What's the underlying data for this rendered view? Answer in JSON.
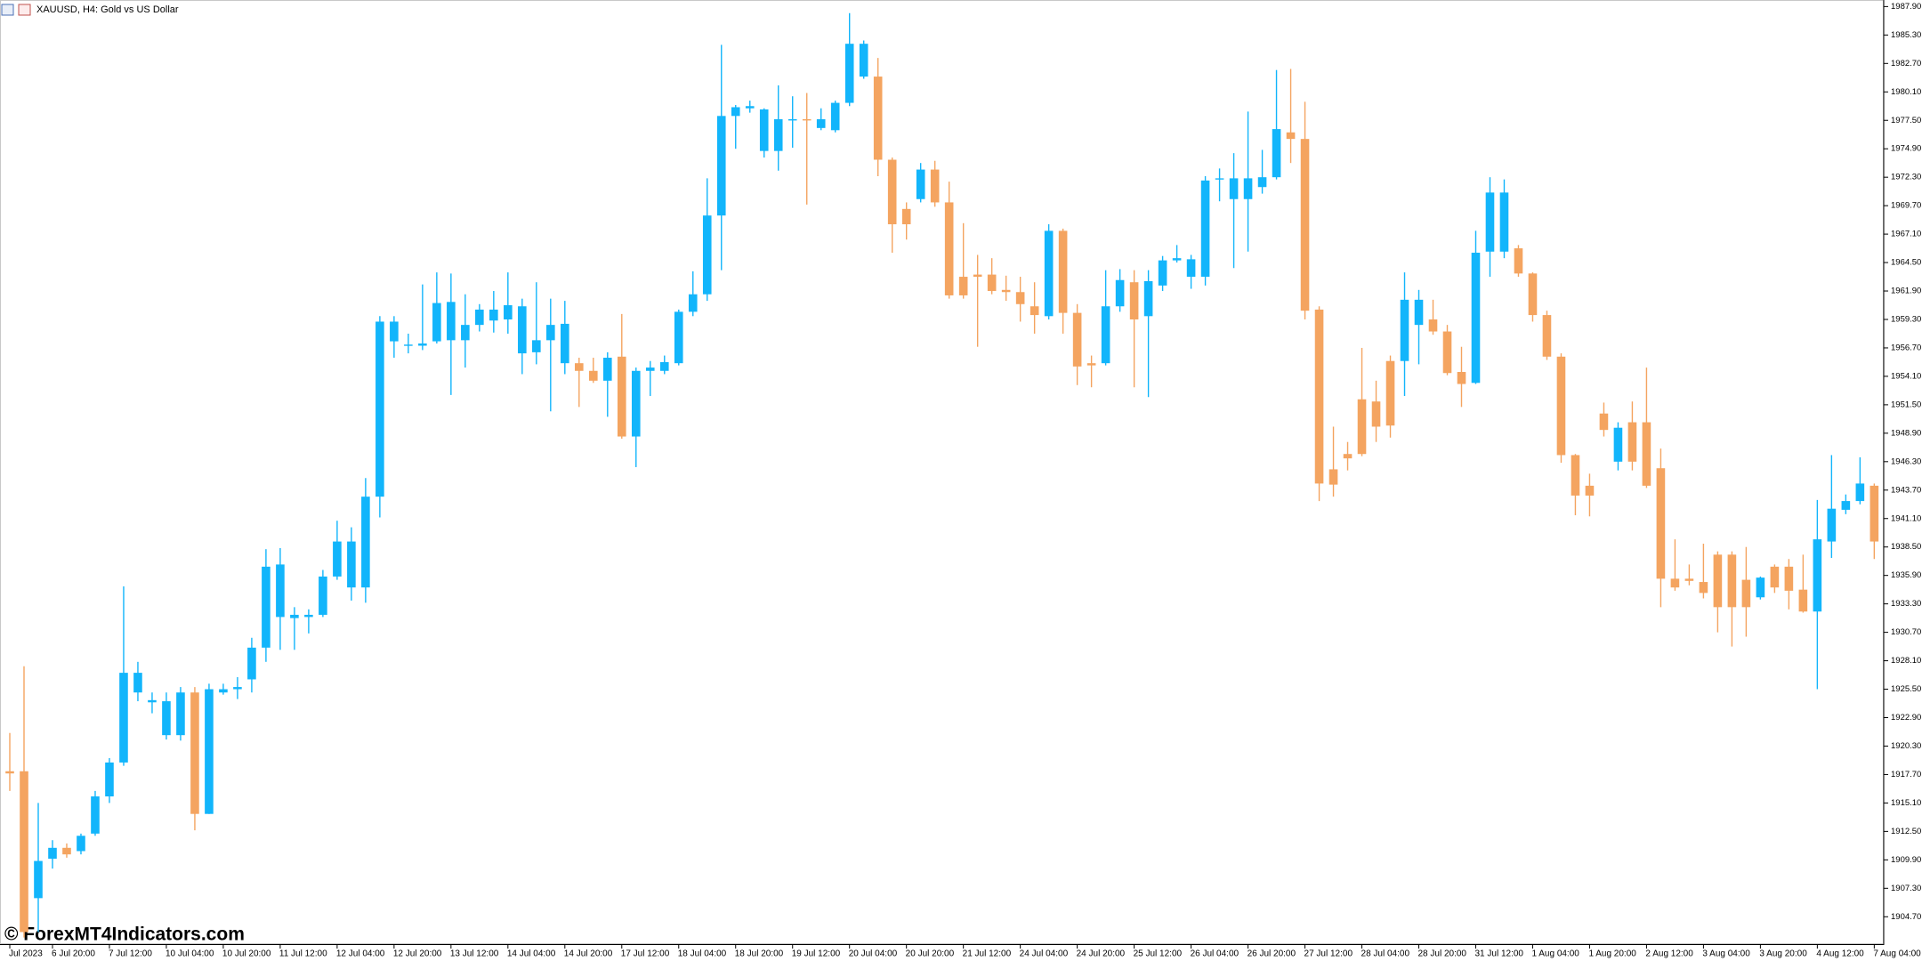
{
  "chart_data": {
    "type": "candlestick",
    "title": "XAUUSD, H4:  Gold vs US Dollar",
    "watermark": "© ForexMT4Indicators.com",
    "up_color": "#12b5fb",
    "down_color": "#f4a460",
    "grid": false,
    "categories": [
      "Jul 2023",
      null,
      null,
      "6 Jul 20:00",
      null,
      null,
      null,
      "7 Jul 12:00",
      null,
      null,
      null,
      "10 Jul 04:00",
      null,
      null,
      null,
      "10 Jul 20:00",
      null,
      null,
      null,
      "11 Jul 12:00",
      null,
      null,
      null,
      "12 Jul 04:00",
      null,
      null,
      null,
      "12 Jul 20:00",
      null,
      null,
      null,
      "13 Jul 12:00",
      null,
      null,
      null,
      "14 Jul 04:00",
      null,
      null,
      null,
      "14 Jul 20:00",
      null,
      null,
      null,
      "17 Jul 12:00",
      null,
      null,
      null,
      "18 Jul 04:00",
      null,
      null,
      null,
      "18 Jul 20:00",
      null,
      null,
      null,
      "19 Jul 12:00",
      null,
      null,
      null,
      "20 Jul 04:00",
      null,
      null,
      null,
      "20 Jul 20:00",
      null,
      null,
      null,
      "21 Jul 12:00",
      null,
      null,
      null,
      "24 Jul 04:00",
      null,
      null,
      null,
      "24 Jul 20:00",
      null,
      null,
      null,
      "25 Jul 12:00",
      null,
      null,
      null,
      "26 Jul 04:00",
      null,
      null,
      null,
      "26 Jul 20:00",
      null,
      null,
      null,
      "27 Jul 12:00",
      null,
      null,
      null,
      "28 Jul 04:00",
      null,
      null,
      null,
      "28 Jul 20:00",
      null,
      null,
      null,
      "31 Jul 12:00",
      null,
      null,
      null,
      "1 Aug 04:00",
      null,
      null,
      null,
      "1 Aug 20:00",
      null,
      null,
      null,
      "2 Aug 12:00",
      null,
      null,
      null,
      "3 Aug 04:00",
      null,
      null,
      null,
      "3 Aug 20:00",
      null,
      null,
      null,
      "4 Aug 12:00",
      null,
      null,
      null,
      "7 Aug 04:00"
    ],
    "open": [
      1918.0,
      1918.0,
      1906.4,
      1910.0,
      1911.0,
      1910.7,
      1912.3,
      1915.7,
      1918.8,
      1925.2,
      1924.3,
      1921.3,
      1921.3,
      1925.2,
      1914.1,
      1925.2,
      1925.5,
      1926.4,
      1929.3,
      1932.1,
      1932.0,
      1932.1,
      1932.3,
      1935.8,
      1934.8,
      1934.8,
      1943.1,
      1957.3,
      1956.9,
      1956.9,
      1957.3,
      1957.4,
      1957.4,
      1958.8,
      1959.2,
      1959.3,
      1956.2,
      1956.3,
      1957.4,
      1955.3,
      1955.3,
      1954.6,
      1953.7,
      1955.9,
      1948.6,
      1954.6,
      1954.6,
      1955.3,
      1960.0,
      1961.6,
      1968.8,
      1977.9,
      1978.6,
      1974.7,
      1974.7,
      1977.5,
      1977.6,
      1976.8,
      1976.6,
      1979.1,
      1981.5,
      1981.5,
      1973.9,
      1969.4,
      1970.3,
      1973.0,
      1970.0,
      1963.2,
      1963.4,
      1963.4,
      1962.0,
      1961.8,
      1960.5,
      1959.6,
      1967.4,
      1959.9,
      1955.3,
      1955.3,
      1960.5,
      1962.7,
      1959.6,
      1962.4,
      1964.7,
      1963.2,
      1963.2,
      1972.1,
      1970.3,
      1970.3,
      1971.4,
      1972.3,
      1976.4,
      1975.8,
      1960.2,
      1945.6,
      1947.0,
      1952.0,
      1951.8,
      1955.5,
      1955.5,
      1958.8,
      1959.3,
      1958.2,
      1954.5,
      1953.5,
      1965.5,
      1965.5,
      1965.8,
      1963.5,
      1959.7,
      1955.9,
      1946.9,
      1944.1,
      1950.7,
      1946.3,
      1949.9,
      1949.9,
      1945.7,
      1935.6,
      1935.6,
      1935.3,
      1937.8,
      1937.8,
      1935.5,
      1933.9,
      1936.7,
      1936.7,
      1934.6,
      1932.6,
      1939.0,
      1941.9,
      1942.7,
      1944.1
    ],
    "high": [
      1921.5,
      1927.6,
      1915.1,
      1911.7,
      1911.4,
      1912.3,
      1916.2,
      1919.2,
      1934.9,
      1928.0,
      1925.2,
      1925.2,
      1925.7,
      1925.7,
      1926.0,
      1926.0,
      1926.6,
      1930.2,
      1938.3,
      1938.4,
      1933.0,
      1932.8,
      1936.4,
      1940.9,
      1940.3,
      1944.8,
      1959.6,
      1959.6,
      1958.0,
      1962.5,
      1963.6,
      1963.5,
      1961.6,
      1960.7,
      1961.9,
      1963.6,
      1961.2,
      1962.7,
      1961.2,
      1961.0,
      1955.8,
      1955.8,
      1956.3,
      1959.8,
      1954.9,
      1955.5,
      1956.0,
      1960.2,
      1963.7,
      1972.2,
      1984.4,
      1978.9,
      1979.3,
      1978.6,
      1980.7,
      1979.7,
      1980.0,
      1978.6,
      1979.3,
      1987.3,
      1984.8,
      1983.2,
      1974.1,
      1970.0,
      1973.6,
      1973.8,
      1971.9,
      1968.1,
      1965.2,
      1964.9,
      1963.3,
      1963.2,
      1962.7,
      1968.0,
      1967.6,
      1960.7,
      1956.0,
      1963.8,
      1963.9,
      1963.8,
      1963.8,
      1965.1,
      1966.1,
      1965.2,
      1972.4,
      1973.1,
      1974.5,
      1978.3,
      1974.8,
      1982.1,
      1982.2,
      1979.2,
      1960.5,
      1949.5,
      1948.1,
      1956.7,
      1953.7,
      1956.0,
      1963.6,
      1962.0,
      1961.1,
      1958.8,
      1956.8,
      1967.4,
      1972.3,
      1972.1,
      1966.1,
      1963.6,
      1960.1,
      1956.2,
      1947.0,
      1945.2,
      1951.7,
      1949.9,
      1951.8,
      1954.9,
      1947.5,
      1939.2,
      1936.9,
      1938.8,
      1938.1,
      1938.1,
      1938.5,
      1935.8,
      1936.9,
      1937.4,
      1937.8,
      1942.8,
      1946.9,
      1943.3,
      1946.7,
      1944.3
    ],
    "low": [
      1916.2,
      1902.8,
      1903.3,
      1909.1,
      1910.1,
      1910.4,
      1912.1,
      1915.1,
      1918.5,
      1924.4,
      1923.3,
      1920.9,
      1920.8,
      1912.6,
      1914.1,
      1925.0,
      1924.6,
      1925.2,
      1928.0,
      1929.1,
      1929.1,
      1930.6,
      1932.1,
      1935.5,
      1933.6,
      1933.4,
      1941.2,
      1955.8,
      1956.2,
      1956.5,
      1957.1,
      1952.4,
      1954.9,
      1958.2,
      1958.1,
      1958.0,
      1954.3,
      1955.2,
      1950.9,
      1954.3,
      1951.3,
      1953.5,
      1950.4,
      1948.4,
      1945.8,
      1952.3,
      1954.3,
      1955.1,
      1959.6,
      1961.0,
      1963.8,
      1974.9,
      1978.2,
      1974.1,
      1972.9,
      1975.0,
      1969.8,
      1976.6,
      1976.4,
      1978.8,
      1981.3,
      1972.4,
      1965.4,
      1966.6,
      1970.0,
      1969.6,
      1961.2,
      1961.2,
      1956.8,
      1961.6,
      1961.0,
      1959.1,
      1958.0,
      1959.3,
      1958.0,
      1953.3,
      1953.1,
      1955.1,
      1960.0,
      1953.1,
      1952.2,
      1961.9,
      1964.5,
      1962.1,
      1962.4,
      1970.1,
      1964.0,
      1965.5,
      1970.8,
      1972.1,
      1973.6,
      1959.3,
      1942.7,
      1943.1,
      1945.5,
      1946.8,
      1948.1,
      1948.5,
      1952.3,
      1955.2,
      1957.9,
      1954.2,
      1951.3,
      1953.4,
      1963.2,
      1964.9,
      1963.2,
      1959.1,
      1955.6,
      1946.2,
      1941.4,
      1941.3,
      1948.6,
      1945.5,
      1945.5,
      1943.9,
      1933.0,
      1934.5,
      1935.0,
      1933.8,
      1930.7,
      1929.4,
      1930.3,
      1933.7,
      1934.3,
      1932.8,
      1932.5,
      1925.5,
      1937.5,
      1941.5,
      1942.4,
      1937.4
    ],
    "close": [
      1917.8,
      1903.3,
      1909.8,
      1911.0,
      1910.4,
      1912.1,
      1915.7,
      1918.8,
      1927.0,
      1927.0,
      1924.5,
      1924.4,
      1925.2,
      1914.1,
      1925.5,
      1925.5,
      1925.7,
      1929.3,
      1936.7,
      1936.9,
      1932.3,
      1932.3,
      1935.8,
      1939.0,
      1939.0,
      1943.1,
      1959.1,
      1959.1,
      1957.0,
      1957.1,
      1960.8,
      1960.9,
      1958.8,
      1960.2,
      1960.2,
      1960.6,
      1960.5,
      1957.4,
      1958.8,
      1958.9,
      1954.6,
      1953.7,
      1955.8,
      1948.6,
      1954.6,
      1954.9,
      1955.4,
      1960.0,
      1961.6,
      1968.8,
      1977.9,
      1978.7,
      1978.8,
      1978.5,
      1977.6,
      1977.6,
      1977.5,
      1977.6,
      1979.1,
      1984.5,
      1984.5,
      1973.9,
      1968.0,
      1968.0,
      1973.0,
      1970.0,
      1961.5,
      1961.5,
      1963.2,
      1961.9,
      1961.8,
      1960.7,
      1959.7,
      1967.4,
      1959.9,
      1955.0,
      1955.1,
      1960.5,
      1962.9,
      1959.3,
      1962.8,
      1964.7,
      1964.9,
      1964.8,
      1972.0,
      1972.2,
      1972.2,
      1972.2,
      1972.3,
      1976.7,
      1975.8,
      1960.1,
      1944.3,
      1944.2,
      1946.6,
      1947.0,
      1949.5,
      1949.6,
      1961.1,
      1961.1,
      1958.2,
      1954.4,
      1953.4,
      1965.4,
      1970.9,
      1970.9,
      1963.5,
      1959.7,
      1955.9,
      1946.9,
      1943.2,
      1943.2,
      1949.2,
      1949.4,
      1946.3,
      1944.1,
      1935.6,
      1934.8,
      1935.4,
      1934.3,
      1933.0,
      1933.0,
      1933.0,
      1935.7,
      1934.8,
      1934.5,
      1932.6,
      1939.2,
      1942.0,
      1942.7,
      1944.3,
      1939.0
    ],
    "ylim": [
      1902.2,
      1988.5
    ],
    "yticks": [
      {
        "value": 1987.9,
        "label": "1987.90"
      },
      {
        "value": 1985.3,
        "label": "1985.30"
      },
      {
        "value": 1982.7,
        "label": "1982.70"
      },
      {
        "value": 1980.1,
        "label": "1980.10"
      },
      {
        "value": 1977.5,
        "label": "1977.50"
      },
      {
        "value": 1974.9,
        "label": "1974.90"
      },
      {
        "value": 1972.3,
        "label": "1972.30"
      },
      {
        "value": 1969.7,
        "label": "1969.70"
      },
      {
        "value": 1967.1,
        "label": "1967.10"
      },
      {
        "value": 1964.5,
        "label": "1964.50"
      },
      {
        "value": 1961.9,
        "label": "1961.90"
      },
      {
        "value": 1959.3,
        "label": "1959.30"
      },
      {
        "value": 1956.7,
        "label": "1956.70"
      },
      {
        "value": 1954.1,
        "label": "1954.10"
      },
      {
        "value": 1951.5,
        "label": "1951.50"
      },
      {
        "value": 1948.9,
        "label": "1948.90"
      },
      {
        "value": 1946.3,
        "label": "1946.30"
      },
      {
        "value": 1943.7,
        "label": "1943.70"
      },
      {
        "value": 1941.1,
        "label": "1941.10"
      },
      {
        "value": 1938.5,
        "label": "1938.50"
      },
      {
        "value": 1935.9,
        "label": "1935.90"
      },
      {
        "value": 1933.3,
        "label": "1933.30"
      },
      {
        "value": 1930.7,
        "label": "1930.70"
      },
      {
        "value": 1928.1,
        "label": "1928.10"
      },
      {
        "value": 1925.5,
        "label": "1925.50"
      },
      {
        "value": 1922.9,
        "label": "1922.90"
      },
      {
        "value": 1920.3,
        "label": "1920.30"
      },
      {
        "value": 1917.7,
        "label": "1917.70"
      },
      {
        "value": 1915.1,
        "label": "1915.10"
      },
      {
        "value": 1912.5,
        "label": "1912.50"
      },
      {
        "value": 1909.9,
        "label": "1909.90"
      },
      {
        "value": 1907.3,
        "label": "1907.30"
      },
      {
        "value": 1904.7,
        "label": "1904.70"
      }
    ]
  }
}
